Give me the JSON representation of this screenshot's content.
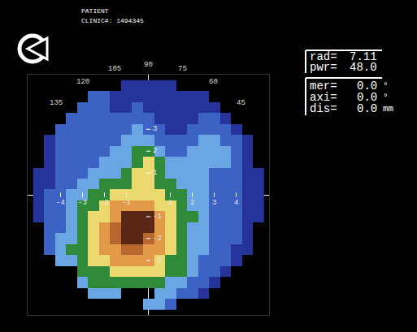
{
  "chart_data": {
    "type": "heatmap",
    "header": [
      "PATIENT",
      "CLINIC#: 1494345"
    ],
    "readout": [
      {
        "label": "rad=",
        "value": "7.11",
        "unit": ""
      },
      {
        "label": "pwr=",
        "value": "48.0",
        "unit": ""
      },
      {
        "label": "mer=",
        "value": "0.0",
        "unit": "°"
      },
      {
        "label": "axi=",
        "value": "0.0",
        "unit": "°"
      },
      {
        "label": "dis=",
        "value": "0.0",
        "unit": "mm"
      }
    ],
    "angle_labels": [
      45,
      60,
      75,
      90,
      105,
      120,
      135
    ],
    "xlim": [
      -5.5,
      5.5
    ],
    "ylim": [
      -5.5,
      5.5
    ],
    "xticks": [
      -4,
      -3,
      -2,
      -1,
      1,
      2,
      3,
      4
    ],
    "yticks": [
      -3,
      -2,
      -1,
      1,
      2,
      3
    ],
    "grid": false,
    "zlim": [
      41.5,
      50.5
    ],
    "x": [
      -5,
      -4.5,
      -4,
      -3.5,
      -3,
      -2.5,
      -2,
      -1.5,
      -1,
      -0.5,
      0,
      0.5,
      1,
      1.5,
      2,
      2.5,
      3,
      3.5,
      4,
      4.5,
      5
    ],
    "y": [
      5,
      4.5,
      4,
      3.5,
      3,
      2.5,
      2,
      1.5,
      1,
      0.5,
      0,
      -0.5,
      -1,
      -1.5,
      -2,
      -2.5,
      -3,
      -3.5,
      -4,
      -4.5,
      -5
    ],
    "z": [
      [
        null,
        null,
        null,
        null,
        null,
        null,
        null,
        null,
        42,
        42,
        42,
        42,
        42,
        null,
        null,
        null,
        null,
        null,
        null,
        null,
        null
      ],
      [
        null,
        null,
        null,
        null,
        null,
        43,
        43,
        42,
        42,
        42,
        42,
        42,
        42,
        42,
        42,
        42,
        null,
        null,
        null,
        null,
        null
      ],
      [
        null,
        null,
        null,
        null,
        43,
        43,
        43,
        42,
        42,
        43,
        42,
        42,
        42,
        42,
        42,
        42,
        42,
        null,
        null,
        null,
        null
      ],
      [
        null,
        null,
        null,
        43,
        43,
        43,
        43,
        43,
        43,
        43,
        43,
        42,
        42,
        42,
        42,
        43,
        43,
        42,
        null,
        null,
        null
      ],
      [
        null,
        null,
        43,
        43,
        43,
        43,
        43,
        43,
        43,
        44,
        43,
        43,
        42,
        42,
        43,
        43,
        43,
        43,
        42,
        null,
        null
      ],
      [
        null,
        42,
        43,
        43,
        43,
        43,
        43,
        43,
        44,
        44,
        44,
        43,
        43,
        43,
        43,
        44,
        44,
        43,
        43,
        42,
        null
      ],
      [
        null,
        42,
        43,
        43,
        43,
        43,
        43,
        44,
        44,
        45,
        45,
        44,
        43,
        43,
        44,
        44,
        44,
        44,
        43,
        42,
        null
      ],
      [
        null,
        42,
        43,
        43,
        43,
        43,
        44,
        44,
        44,
        45,
        47,
        45,
        44,
        44,
        44,
        44,
        44,
        44,
        43,
        42,
        null
      ],
      [
        42,
        42,
        43,
        43,
        43,
        44,
        44,
        44,
        45,
        47,
        47,
        45,
        44,
        44,
        44,
        44,
        43,
        43,
        43,
        42,
        42
      ],
      [
        42,
        42,
        43,
        43,
        44,
        44,
        45,
        45,
        45,
        47,
        47,
        45,
        45,
        44,
        44,
        44,
        43,
        43,
        43,
        42,
        42
      ],
      [
        42,
        43,
        43,
        44,
        44,
        45,
        45,
        47,
        47,
        47,
        47,
        47,
        45,
        45,
        44,
        44,
        43,
        43,
        43,
        42,
        42
      ],
      [
        42,
        43,
        43,
        44,
        45,
        45,
        47,
        48,
        48,
        48,
        48,
        47,
        47,
        45,
        44,
        44,
        43,
        43,
        43,
        42,
        42
      ],
      [
        42,
        43,
        43,
        44,
        45,
        47,
        47,
        48,
        50,
        50,
        50,
        48,
        47,
        45,
        45,
        44,
        43,
        43,
        43,
        42,
        42
      ],
      [
        null,
        43,
        43,
        44,
        45,
        47,
        48,
        49,
        50,
        50,
        50,
        48,
        47,
        45,
        44,
        44,
        43,
        43,
        43,
        42,
        null
      ],
      [
        null,
        43,
        44,
        44,
        45,
        47,
        48,
        49,
        50,
        50,
        49,
        48,
        47,
        45,
        44,
        44,
        43,
        43,
        43,
        42,
        null
      ],
      [
        null,
        43,
        44,
        45,
        45,
        47,
        48,
        48,
        49,
        49,
        48,
        48,
        47,
        45,
        44,
        44,
        43,
        43,
        42,
        42,
        null
      ],
      [
        null,
        null,
        44,
        44,
        45,
        47,
        47,
        48,
        48,
        48,
        48,
        47,
        45,
        45,
        44,
        43,
        43,
        43,
        42,
        null,
        null
      ],
      [
        null,
        null,
        null,
        null,
        45,
        45,
        45,
        47,
        47,
        47,
        47,
        47,
        45,
        45,
        44,
        43,
        43,
        42,
        null,
        null,
        null
      ],
      [
        null,
        null,
        null,
        null,
        44,
        45,
        45,
        45,
        45,
        45,
        45,
        45,
        44,
        44,
        43,
        43,
        42,
        null,
        null,
        null,
        null
      ],
      [
        null,
        null,
        null,
        null,
        null,
        44,
        44,
        44,
        null,
        null,
        null,
        44,
        44,
        43,
        43,
        42,
        null,
        null,
        null,
        null,
        null
      ],
      [
        null,
        null,
        null,
        null,
        null,
        null,
        null,
        null,
        null,
        null,
        44,
        44,
        43,
        null,
        null,
        null,
        null,
        null,
        null,
        null,
        null
      ]
    ]
  }
}
